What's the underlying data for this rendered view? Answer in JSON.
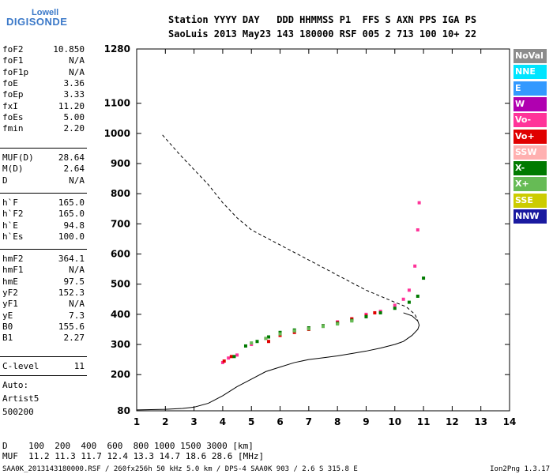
{
  "logo": {
    "top": "Lowell",
    "bottom": "DIGISONDE"
  },
  "header": {
    "labels": "Station YYYY DAY   DDD HHMMSS P1  FFS S AXN PPS IGA PS",
    "values": "SaoLuis 2013 May23 143 180000 RSF 005 2 713 100 10+ 22"
  },
  "params": {
    "group1": [
      {
        "k": "foF2",
        "v": "10.850"
      },
      {
        "k": "foF1",
        "v": "N/A"
      },
      {
        "k": "foF1p",
        "v": "N/A"
      },
      {
        "k": "foE",
        "v": "3.36"
      },
      {
        "k": "foEp",
        "v": "3.33"
      },
      {
        "k": "fxI",
        "v": "11.20"
      },
      {
        "k": "foEs",
        "v": "5.00"
      },
      {
        "k": "fmin",
        "v": "2.20"
      }
    ],
    "group2": [
      {
        "k": "MUF(D)",
        "v": "28.64"
      },
      {
        "k": "M(D)",
        "v": "2.64"
      },
      {
        "k": "D",
        "v": "N/A"
      }
    ],
    "group3": [
      {
        "k": "h`F",
        "v": "165.0"
      },
      {
        "k": "h`F2",
        "v": "165.0"
      },
      {
        "k": "h`E",
        "v": "94.8"
      },
      {
        "k": "h`Es",
        "v": "100.0"
      }
    ],
    "group4": [
      {
        "k": "hmF2",
        "v": "364.1"
      },
      {
        "k": "hmF1",
        "v": "N/A"
      },
      {
        "k": "hmE",
        "v": "97.5"
      },
      {
        "k": "yF2",
        "v": "152.3"
      },
      {
        "k": "yF1",
        "v": "N/A"
      },
      {
        "k": "yE",
        "v": "7.3"
      },
      {
        "k": "B0",
        "v": "155.6"
      },
      {
        "k": "B1",
        "v": "2.27"
      }
    ],
    "group5": [
      {
        "k": "C-level",
        "v": "11"
      }
    ],
    "auto": [
      "Auto:",
      "Artist5",
      "500200"
    ]
  },
  "legend": [
    {
      "label": "NoVal",
      "color": "#8c8c8c"
    },
    {
      "label": "NNE",
      "color": "#00e5ff"
    },
    {
      "label": "E",
      "color": "#3399ff"
    },
    {
      "label": "W",
      "color": "#b000b0"
    },
    {
      "label": "Vo-",
      "color": "#ff3399"
    },
    {
      "label": "Vo+",
      "color": "#e00000"
    },
    {
      "label": "SSW",
      "color": "#ffb0b0"
    },
    {
      "label": "X-",
      "color": "#007a00"
    },
    {
      "label": "X+",
      "color": "#66bb55"
    },
    {
      "label": "SSE",
      "color": "#cccc00"
    },
    {
      "label": "NNW",
      "color": "#1a1aa0"
    }
  ],
  "muf_table": {
    "d_row": "D    100  200  400  600  800 1000 1500 3000 [km]",
    "muf_row": "MUF  11.2 11.3 11.7 12.4 13.3 14.7 18.6 28.6 [MHz]"
  },
  "footer": {
    "left": "SAA0K_2013143180000.RSF / 260fx256h 50 kHz 5.0 km / DPS-4 SAA0K 903 / 2.6 S 315.8 E",
    "right": "Ion2Png 1.3.17"
  },
  "chart_data": {
    "type": "scatter",
    "xlabel": "",
    "ylabel": "",
    "xlim": [
      1,
      14
    ],
    "ylim": [
      80,
      1280
    ],
    "x_ticks": [
      1,
      2,
      3,
      4,
      5,
      6,
      7,
      8,
      9,
      10,
      11,
      12,
      13,
      14
    ],
    "y_ticks": [
      80,
      200,
      300,
      400,
      500,
      600,
      700,
      800,
      900,
      1000,
      1100,
      1280
    ],
    "grid": false,
    "legend_position": "right",
    "profile_curve": {
      "x": [
        1.0,
        2.0,
        2.6,
        3.0,
        3.5,
        4.0,
        4.5,
        5.0,
        5.5,
        6.0,
        6.5,
        7.0,
        7.5,
        8.0,
        8.5,
        9.0,
        9.5,
        10.0,
        10.3,
        10.6,
        10.8,
        10.85,
        10.8,
        10.6,
        10.3
      ],
      "y": [
        83,
        85,
        88,
        92,
        105,
        130,
        160,
        185,
        210,
        225,
        240,
        250,
        256,
        262,
        270,
        278,
        288,
        300,
        310,
        330,
        350,
        364,
        378,
        395,
        405
      ]
    },
    "model_curve_dashed": {
      "x": [
        1.9,
        2.5,
        3.0,
        3.5,
        4.0,
        4.5,
        5.0,
        5.5,
        6.0,
        6.5,
        7.0,
        7.5,
        8.0,
        8.5,
        9.0,
        9.5,
        10.0,
        10.4,
        10.7,
        10.8
      ],
      "y": [
        995,
        930,
        880,
        830,
        770,
        720,
        680,
        655,
        630,
        605,
        580,
        555,
        530,
        505,
        480,
        460,
        440,
        425,
        400,
        380
      ]
    },
    "series": [
      {
        "name": "Vo-",
        "x": [
          4.0,
          4.2,
          4.5,
          5.0,
          5.5,
          6.0,
          6.5,
          7.0,
          7.5,
          8.0,
          8.5,
          9.0,
          9.5,
          10.0,
          10.3,
          10.5,
          10.7,
          10.8,
          10.85
        ],
        "y": [
          240,
          255,
          265,
          300,
          320,
          335,
          345,
          355,
          360,
          375,
          385,
          400,
          410,
          430,
          450,
          480,
          560,
          680,
          770
        ]
      },
      {
        "name": "Vo+",
        "x": [
          4.05,
          4.3,
          5.6,
          6.0,
          6.5,
          7.0,
          7.5,
          8.0,
          8.5,
          9.0,
          9.3
        ],
        "y": [
          245,
          260,
          310,
          330,
          340,
          350,
          362,
          372,
          385,
          395,
          405
        ]
      },
      {
        "name": "X-",
        "x": [
          4.4,
          4.8,
          5.2,
          5.6,
          6.0,
          6.5,
          7.0,
          7.5,
          8.0,
          8.5,
          9.0,
          9.5,
          10.0,
          10.5,
          10.8,
          11.0
        ],
        "y": [
          260,
          295,
          310,
          325,
          340,
          348,
          355,
          362,
          370,
          380,
          392,
          405,
          420,
          440,
          460,
          520
        ]
      },
      {
        "name": "X+",
        "x": [
          5.0,
          5.5,
          6.0,
          6.5,
          7.0,
          7.5,
          8.0,
          8.5
        ],
        "y": [
          305,
          320,
          335,
          345,
          352,
          360,
          368,
          378
        ]
      }
    ]
  }
}
